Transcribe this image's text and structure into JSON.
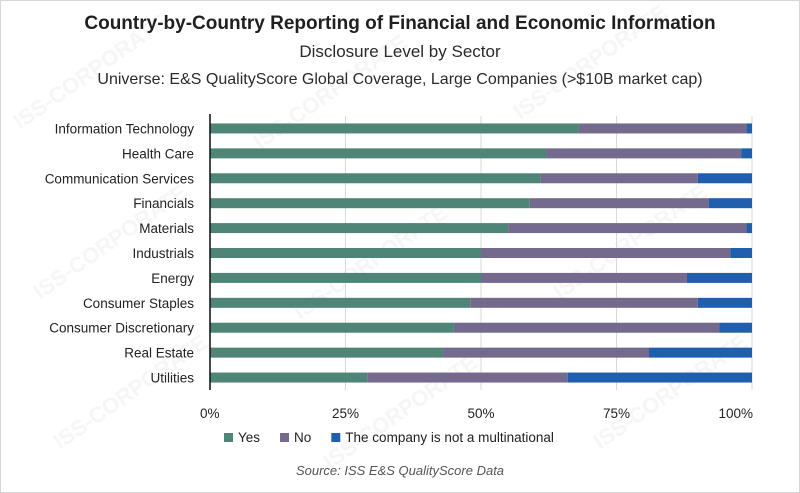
{
  "title": "Country-by-Country Reporting of Financial and Economic Information",
  "subtitle": "Disclosure Level by Sector",
  "universe": "Universe: E&S QualityScore Global Coverage, Large Companies (>$10B market cap)",
  "source": "Source: ISS E&S QualityScore Data",
  "watermark": "ISS-CORPORATE",
  "chart_data": {
    "type": "bar",
    "orientation": "horizontal",
    "stacked": true,
    "categories": [
      "Information Technology",
      "Health Care",
      "Communication Services",
      "Financials",
      "Materials",
      "Industrials",
      "Energy",
      "Consumer Staples",
      "Consumer Discretionary",
      "Real Estate",
      "Utilities"
    ],
    "series": [
      {
        "name": "Yes",
        "color": "#4e8577",
        "values": [
          68,
          62,
          61,
          59,
          55,
          50,
          50,
          48,
          45,
          43,
          29
        ]
      },
      {
        "name": "No",
        "color": "#736a8e",
        "values": [
          31,
          36,
          29,
          33,
          44,
          46,
          38,
          42,
          49,
          38,
          37
        ]
      },
      {
        "name": "The company is not a multinational",
        "color": "#1f5fae",
        "values": [
          1,
          2,
          10,
          8,
          1,
          4,
          12,
          10,
          6,
          19,
          34
        ]
      }
    ],
    "xlim": [
      0,
      100
    ],
    "xticks": [
      "0%",
      "25%",
      "50%",
      "75%",
      "100%"
    ],
    "grid": "vertical",
    "legend": "bottom"
  }
}
